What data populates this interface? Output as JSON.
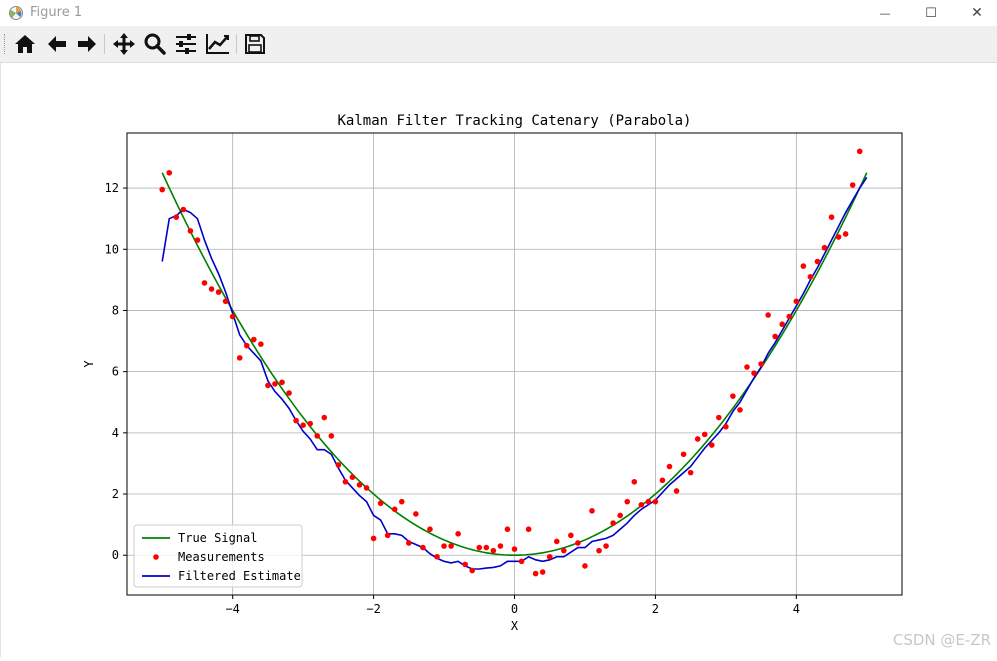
{
  "window": {
    "title": "Figure 1",
    "controls": {
      "minimize": "—",
      "maximize": "☐",
      "close": "✕"
    }
  },
  "toolbar": {
    "buttons": [
      {
        "name": "home-button",
        "icon": "home-icon"
      },
      {
        "name": "back-button",
        "icon": "arrow-left-icon"
      },
      {
        "name": "forward-button",
        "icon": "arrow-right-icon"
      },
      {
        "name": "pan-button",
        "icon": "move-icon"
      },
      {
        "name": "zoom-button",
        "icon": "magnifier-icon"
      },
      {
        "name": "subplots-button",
        "icon": "sliders-icon"
      },
      {
        "name": "edit-axis-button",
        "icon": "line-chart-icon"
      },
      {
        "name": "save-button",
        "icon": "floppy-disk-icon"
      }
    ]
  },
  "watermark": "CSDN @E-ZR",
  "colors": {
    "true_signal": "#008000",
    "measurements": "#ff0000",
    "filtered": "#0000cc",
    "grid": "#b0b0b0"
  },
  "chart_data": {
    "type": "line",
    "title": "Kalman Filter Tracking Catenary (Parabola)",
    "xlabel": "X",
    "ylabel": "Y",
    "xlim": [
      -5.5,
      5.5
    ],
    "ylim": [
      -1.3,
      13.8
    ],
    "xticks": [
      -4,
      -2,
      0,
      2,
      4
    ],
    "yticks": [
      0,
      2,
      4,
      6,
      8,
      10,
      12
    ],
    "xtick_labels": [
      "−4",
      "−2",
      "0",
      "2",
      "4"
    ],
    "ytick_labels": [
      "0",
      "2",
      "4",
      "6",
      "8",
      "10",
      "12"
    ],
    "grid": true,
    "legend_position": "lower-left",
    "series": [
      {
        "name": "True Signal",
        "kind": "line",
        "color": "#008000",
        "equation": "y = 0.5 * x^2",
        "x_range": [
          -5,
          5
        ]
      },
      {
        "name": "Measurements",
        "kind": "scatter",
        "color": "#ff0000",
        "points": [
          [
            -5.0,
            11.95
          ],
          [
            -4.9,
            12.5
          ],
          [
            -4.8,
            11.05
          ],
          [
            -4.7,
            11.3
          ],
          [
            -4.6,
            10.6
          ],
          [
            -4.5,
            10.3
          ],
          [
            -4.4,
            8.9
          ],
          [
            -4.3,
            8.7
          ],
          [
            -4.2,
            8.6
          ],
          [
            -4.1,
            8.3
          ],
          [
            -4.0,
            7.8
          ],
          [
            -3.9,
            6.45
          ],
          [
            -3.8,
            6.85
          ],
          [
            -3.7,
            7.05
          ],
          [
            -3.6,
            6.9
          ],
          [
            -3.5,
            5.55
          ],
          [
            -3.4,
            5.6
          ],
          [
            -3.3,
            5.65
          ],
          [
            -3.2,
            5.3
          ],
          [
            -3.1,
            4.4
          ],
          [
            -3.0,
            4.25
          ],
          [
            -2.9,
            4.3
          ],
          [
            -2.8,
            3.9
          ],
          [
            -2.7,
            4.5
          ],
          [
            -2.6,
            3.9
          ],
          [
            -2.5,
            2.95
          ],
          [
            -2.4,
            2.4
          ],
          [
            -2.3,
            2.55
          ],
          [
            -2.2,
            2.3
          ],
          [
            -2.1,
            2.2
          ],
          [
            -2.0,
            0.55
          ],
          [
            -1.9,
            1.7
          ],
          [
            -1.8,
            0.65
          ],
          [
            -1.7,
            1.5
          ],
          [
            -1.6,
            1.75
          ],
          [
            -1.5,
            0.4
          ],
          [
            -1.4,
            1.35
          ],
          [
            -1.3,
            0.25
          ],
          [
            -1.2,
            0.85
          ],
          [
            -1.1,
            -0.05
          ],
          [
            -1.0,
            0.3
          ],
          [
            -0.9,
            0.3
          ],
          [
            -0.8,
            0.7
          ],
          [
            -0.7,
            -0.3
          ],
          [
            -0.6,
            -0.5
          ],
          [
            -0.5,
            0.25
          ],
          [
            -0.4,
            0.25
          ],
          [
            -0.3,
            0.15
          ],
          [
            -0.2,
            0.3
          ],
          [
            -0.1,
            0.85
          ],
          [
            0.0,
            0.2
          ],
          [
            0.1,
            -0.2
          ],
          [
            0.2,
            0.85
          ],
          [
            0.3,
            -0.6
          ],
          [
            0.4,
            -0.55
          ],
          [
            0.5,
            -0.05
          ],
          [
            0.6,
            0.45
          ],
          [
            0.7,
            0.15
          ],
          [
            0.8,
            0.65
          ],
          [
            0.9,
            0.4
          ],
          [
            1.0,
            -0.35
          ],
          [
            1.1,
            1.45
          ],
          [
            1.2,
            0.15
          ],
          [
            1.3,
            0.3
          ],
          [
            1.4,
            1.05
          ],
          [
            1.5,
            1.3
          ],
          [
            1.6,
            1.75
          ],
          [
            1.7,
            2.4
          ],
          [
            1.8,
            1.65
          ],
          [
            1.9,
            1.75
          ],
          [
            2.0,
            1.75
          ],
          [
            2.1,
            2.45
          ],
          [
            2.2,
            2.9
          ],
          [
            2.3,
            2.1
          ],
          [
            2.4,
            3.3
          ],
          [
            2.5,
            2.7
          ],
          [
            2.6,
            3.8
          ],
          [
            2.7,
            3.95
          ],
          [
            2.8,
            3.6
          ],
          [
            2.9,
            4.5
          ],
          [
            3.0,
            4.2
          ],
          [
            3.1,
            5.2
          ],
          [
            3.2,
            4.75
          ],
          [
            3.3,
            6.15
          ],
          [
            3.4,
            5.95
          ],
          [
            3.5,
            6.25
          ],
          [
            3.6,
            7.85
          ],
          [
            3.7,
            7.15
          ],
          [
            3.8,
            7.55
          ],
          [
            3.9,
            7.8
          ],
          [
            4.0,
            8.3
          ],
          [
            4.1,
            9.45
          ],
          [
            4.2,
            9.1
          ],
          [
            4.3,
            9.6
          ],
          [
            4.4,
            10.05
          ],
          [
            4.5,
            11.05
          ],
          [
            4.6,
            10.4
          ],
          [
            4.7,
            10.5
          ],
          [
            4.8,
            12.1
          ],
          [
            4.9,
            13.2
          ]
        ]
      },
      {
        "name": "Filtered Estimate",
        "kind": "line",
        "color": "#0000cc",
        "points": [
          [
            -5.0,
            9.6
          ],
          [
            -4.9,
            11.0
          ],
          [
            -4.8,
            11.1
          ],
          [
            -4.7,
            11.3
          ],
          [
            -4.6,
            11.2
          ],
          [
            -4.5,
            11.0
          ],
          [
            -4.4,
            10.3
          ],
          [
            -4.3,
            9.7
          ],
          [
            -4.2,
            9.2
          ],
          [
            -4.1,
            8.6
          ],
          [
            -4.0,
            7.9
          ],
          [
            -3.9,
            7.2
          ],
          [
            -3.8,
            6.85
          ],
          [
            -3.7,
            6.6
          ],
          [
            -3.6,
            6.35
          ],
          [
            -3.5,
            5.7
          ],
          [
            -3.4,
            5.35
          ],
          [
            -3.3,
            5.1
          ],
          [
            -3.2,
            4.8
          ],
          [
            -3.1,
            4.4
          ],
          [
            -3.0,
            4.05
          ],
          [
            -2.9,
            3.8
          ],
          [
            -2.8,
            3.45
          ],
          [
            -2.7,
            3.45
          ],
          [
            -2.6,
            3.3
          ],
          [
            -2.5,
            2.85
          ],
          [
            -2.4,
            2.45
          ],
          [
            -2.3,
            2.2
          ],
          [
            -2.2,
            1.95
          ],
          [
            -2.1,
            1.75
          ],
          [
            -2.0,
            1.3
          ],
          [
            -1.9,
            1.15
          ],
          [
            -1.8,
            0.7
          ],
          [
            -1.7,
            0.7
          ],
          [
            -1.6,
            0.65
          ],
          [
            -1.5,
            0.45
          ],
          [
            -1.4,
            0.35
          ],
          [
            -1.3,
            0.25
          ],
          [
            -1.2,
            0.05
          ],
          [
            -1.1,
            -0.1
          ],
          [
            -1.0,
            -0.2
          ],
          [
            -0.9,
            -0.25
          ],
          [
            -0.8,
            -0.2
          ],
          [
            -0.7,
            -0.35
          ],
          [
            -0.6,
            -0.45
          ],
          [
            -0.5,
            -0.45
          ],
          [
            -0.4,
            -0.42
          ],
          [
            -0.3,
            -0.4
          ],
          [
            -0.2,
            -0.35
          ],
          [
            -0.1,
            -0.2
          ],
          [
            0.0,
            -0.2
          ],
          [
            0.1,
            -0.2
          ],
          [
            0.2,
            -0.05
          ],
          [
            0.3,
            -0.15
          ],
          [
            0.4,
            -0.2
          ],
          [
            0.5,
            -0.15
          ],
          [
            0.6,
            -0.05
          ],
          [
            0.7,
            -0.05
          ],
          [
            0.8,
            0.1
          ],
          [
            0.9,
            0.25
          ],
          [
            1.0,
            0.25
          ],
          [
            1.1,
            0.45
          ],
          [
            1.2,
            0.5
          ],
          [
            1.3,
            0.55
          ],
          [
            1.4,
            0.65
          ],
          [
            1.5,
            0.85
          ],
          [
            1.6,
            1.05
          ],
          [
            1.7,
            1.3
          ],
          [
            1.8,
            1.5
          ],
          [
            1.9,
            1.65
          ],
          [
            2.0,
            1.8
          ],
          [
            2.1,
            2.05
          ],
          [
            2.2,
            2.3
          ],
          [
            2.3,
            2.5
          ],
          [
            2.4,
            2.7
          ],
          [
            2.5,
            2.9
          ],
          [
            2.6,
            3.2
          ],
          [
            2.7,
            3.5
          ],
          [
            2.8,
            3.75
          ],
          [
            2.9,
            4.0
          ],
          [
            3.0,
            4.3
          ],
          [
            3.1,
            4.7
          ],
          [
            3.2,
            5.0
          ],
          [
            3.3,
            5.4
          ],
          [
            3.4,
            5.8
          ],
          [
            3.5,
            6.15
          ],
          [
            3.6,
            6.6
          ],
          [
            3.7,
            6.95
          ],
          [
            3.8,
            7.35
          ],
          [
            3.9,
            7.75
          ],
          [
            4.0,
            8.15
          ],
          [
            4.1,
            8.55
          ],
          [
            4.2,
            9.0
          ],
          [
            4.3,
            9.4
          ],
          [
            4.4,
            9.85
          ],
          [
            4.5,
            10.3
          ],
          [
            4.6,
            10.75
          ],
          [
            4.7,
            11.2
          ],
          [
            4.8,
            11.6
          ],
          [
            4.9,
            12.0
          ],
          [
            5.0,
            12.35
          ]
        ]
      }
    ]
  }
}
